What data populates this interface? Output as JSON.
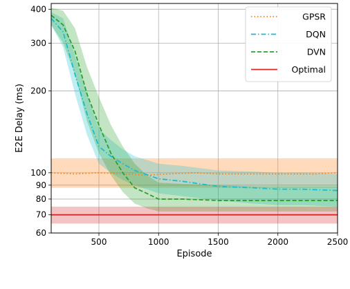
{
  "chart_data": {
    "type": "line",
    "xlabel": "Episode",
    "ylabel": "E2E Delay (ms)",
    "xlim": [
      100,
      2500
    ],
    "ylim": [
      60,
      420
    ],
    "yscale": "log",
    "grid": true,
    "legend_position": "top-right",
    "x_ticks": [
      500,
      1000,
      1500,
      2000,
      2500
    ],
    "y_ticks": [
      60,
      70,
      80,
      90,
      100,
      200,
      300,
      400
    ],
    "series": [
      {
        "name": "GPSR",
        "color": "#ff7f0e",
        "style": "dotted",
        "x": [
          100,
          300,
          500,
          700,
          900,
          1100,
          1300,
          1500,
          1700,
          1900,
          2100,
          2300,
          2500
        ],
        "y": [
          100,
          99,
          100,
          99,
          98,
          99,
          100,
          99,
          99,
          99,
          99,
          99,
          100
        ],
        "band_lower": [
          88,
          88,
          88,
          88,
          88,
          88,
          88,
          88,
          88,
          88,
          88,
          88,
          88
        ],
        "band_upper": [
          113,
          113,
          113,
          113,
          113,
          113,
          113,
          113,
          113,
          113,
          113,
          113,
          113
        ]
      },
      {
        "name": "DQN",
        "color": "#17becf",
        "style": "dashdot",
        "x": [
          100,
          200,
          300,
          400,
          500,
          600,
          700,
          800,
          1000,
          1200,
          1500,
          1800,
          2000,
          2200,
          2500
        ],
        "y": [
          370,
          330,
          230,
          165,
          125,
          115,
          108,
          102,
          95,
          93,
          89,
          88,
          87,
          87,
          86
        ],
        "band_lower": [
          350,
          290,
          195,
          138,
          108,
          100,
          94,
          90,
          84,
          82,
          79,
          77,
          76,
          76,
          75
        ],
        "band_upper": [
          390,
          370,
          270,
          195,
          145,
          132,
          122,
          115,
          108,
          106,
          102,
          101,
          100,
          100,
          99
        ]
      },
      {
        "name": "DVN",
        "color": "#2ca02c",
        "style": "dashed",
        "x": [
          100,
          200,
          300,
          400,
          500,
          600,
          700,
          800,
          900,
          1000,
          1200,
          1500,
          1800,
          2000,
          2200,
          2500
        ],
        "y": [
          380,
          350,
          280,
          195,
          150,
          118,
          100,
          88,
          84,
          80,
          80,
          79,
          79,
          79,
          79,
          79
        ],
        "band_lower": [
          350,
          300,
          230,
          155,
          118,
          98,
          85,
          77,
          74,
          72,
          72,
          72,
          72,
          72,
          72,
          72
        ],
        "band_upper": [
          405,
          395,
          340,
          245,
          190,
          150,
          125,
          108,
          98,
          92,
          91,
          90,
          89,
          89,
          89,
          89
        ]
      },
      {
        "name": "Optimal",
        "color": "#d62728",
        "style": "solid",
        "x": [
          100,
          300,
          500,
          700,
          900,
          1100,
          1300,
          1500,
          1700,
          1900,
          2100,
          2300,
          2500
        ],
        "y": [
          70,
          70,
          70,
          70,
          70,
          70,
          70,
          70,
          70,
          70,
          70,
          70,
          70
        ],
        "band_lower": [
          65,
          65,
          65,
          65,
          65,
          65,
          65,
          65,
          65,
          65,
          65,
          65,
          65
        ],
        "band_upper": [
          75,
          75,
          75,
          75,
          75,
          75,
          75,
          75,
          75,
          75,
          75,
          75,
          75
        ]
      }
    ]
  }
}
